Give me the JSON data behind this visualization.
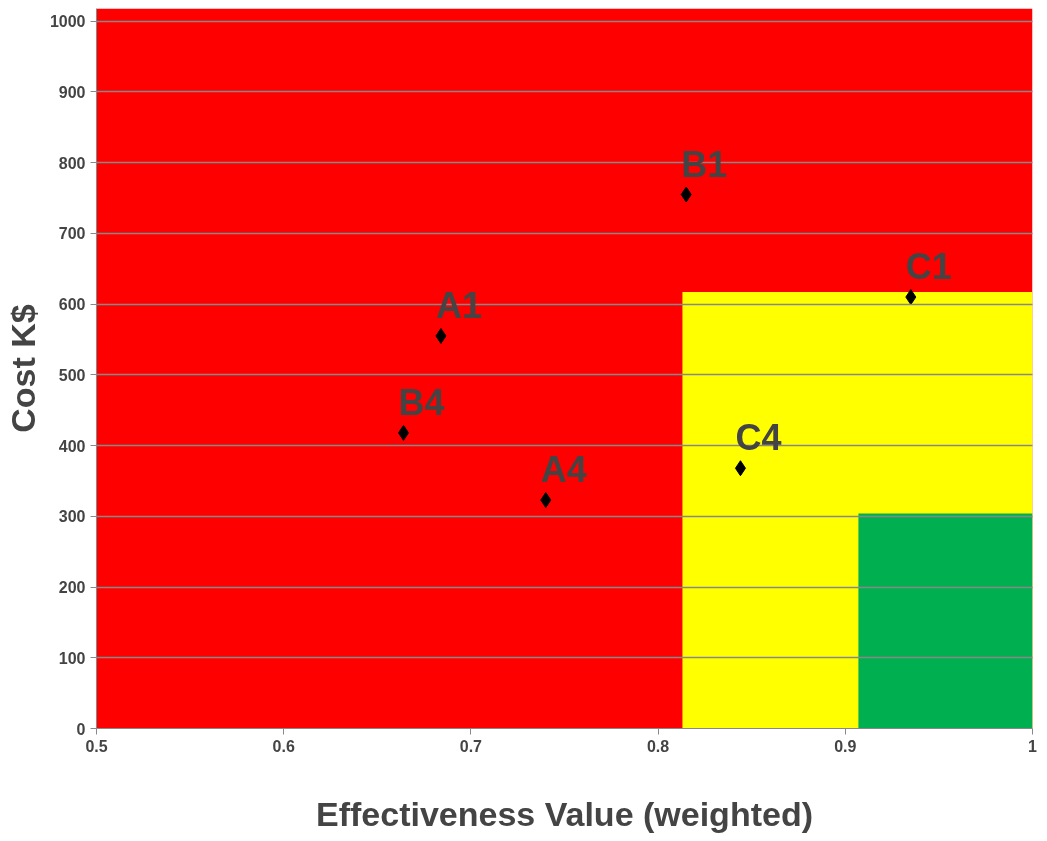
{
  "chart_data": {
    "type": "scatter",
    "xlabel": "Effectiveness Value (weighted)",
    "ylabel": "Cost K$",
    "series": [
      {
        "type": "area",
        "color": "#ffff00",
        "x": [
          0.813,
          1.0
        ],
        "values": [
          617,
          617
        ]
      },
      {
        "type": "area",
        "color": "#00b050",
        "x": [
          0.907,
          1.0
        ],
        "values": [
          304,
          304
        ]
      },
      {
        "color": "#000000",
        "marker": "diamond",
        "x": [
          0.684,
          0.815,
          0.74,
          0.664,
          0.935,
          0.844
        ],
        "values": [
          555,
          755,
          323,
          418,
          610,
          368
        ]
      }
    ],
    "annotations": [
      {
        "text": "A1",
        "x": 0.684,
        "y": 555
      },
      {
        "text": "B1",
        "x": 0.815,
        "y": 755
      },
      {
        "text": "A4",
        "x": 0.74,
        "y": 323
      },
      {
        "text": "B4",
        "x": 0.664,
        "y": 418
      },
      {
        "text": "C1",
        "x": 0.935,
        "y": 610
      },
      {
        "text": "C4",
        "x": 0.844,
        "y": 368
      }
    ],
    "xlim": [
      0.5,
      1.0
    ],
    "ylim": [
      0,
      1018
    ],
    "xticks": [
      0.5,
      0.6,
      0.7,
      0.8,
      0.9,
      1
    ],
    "yticks": [
      0,
      100,
      200,
      300,
      400,
      500,
      600,
      700,
      800,
      900,
      1000
    ],
    "bands": [
      {
        "axis": "x",
        "from": 0.5,
        "to": 1.0,
        "color": "#ff0000"
      }
    ],
    "grid": "y"
  }
}
